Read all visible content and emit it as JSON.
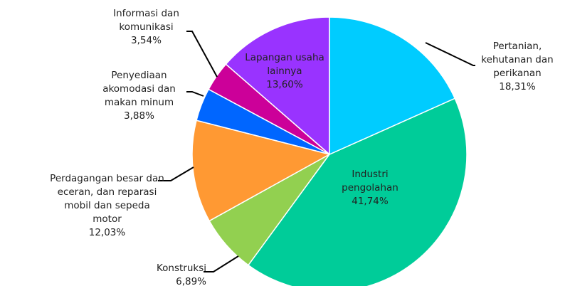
{
  "chart_data": {
    "type": "pie",
    "categories": [
      "Pertanian, kehutanan dan perikanan",
      "Industri pengolahan",
      "Konstruksi",
      "Perdagangan besar dan eceran, dan reparasi mobil dan sepeda motor",
      "Penyediaan akomodasi dan makan minum",
      "Informasi dan komunikasi",
      "Lapangan usaha lainnya"
    ],
    "values": [
      18.31,
      41.74,
      6.89,
      12.03,
      3.88,
      3.54,
      13.6
    ],
    "value_labels": [
      "18,31%",
      "41,74%",
      "6,89%",
      "12,03%",
      "3,88%",
      "3,54%",
      "13,60%"
    ],
    "colors": [
      "#00ccff",
      "#00cc99",
      "#92d050",
      "#ff9933",
      "#0066ff",
      "#cc0099",
      "#9933ff"
    ]
  }
}
